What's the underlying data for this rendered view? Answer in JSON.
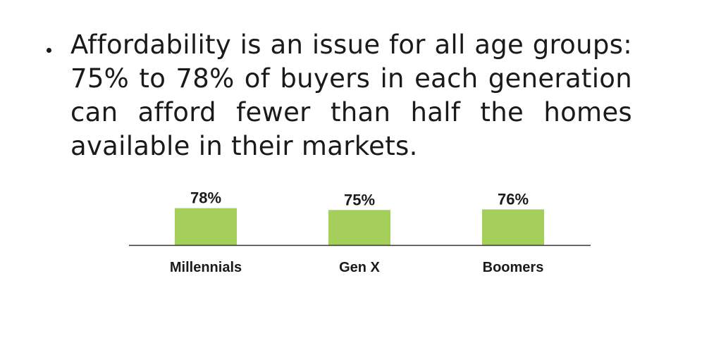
{
  "bullet": {
    "text": "Affordability is an issue for all age groups: 75% to 78% of buyers in each generation can afford fewer than half the homes available in their markets."
  },
  "colors": {
    "bar": "#a3cf5a",
    "baseline": "#333333"
  },
  "chart_data": {
    "type": "bar",
    "categories": [
      "Millennials",
      "Gen X",
      "Boomers"
    ],
    "values": [
      78,
      75,
      76
    ],
    "value_labels": [
      "78%",
      "75%",
      "76%"
    ],
    "title": "",
    "xlabel": "",
    "ylabel": "",
    "ylim": [
      0,
      100
    ],
    "grid": false,
    "legend": "none"
  }
}
